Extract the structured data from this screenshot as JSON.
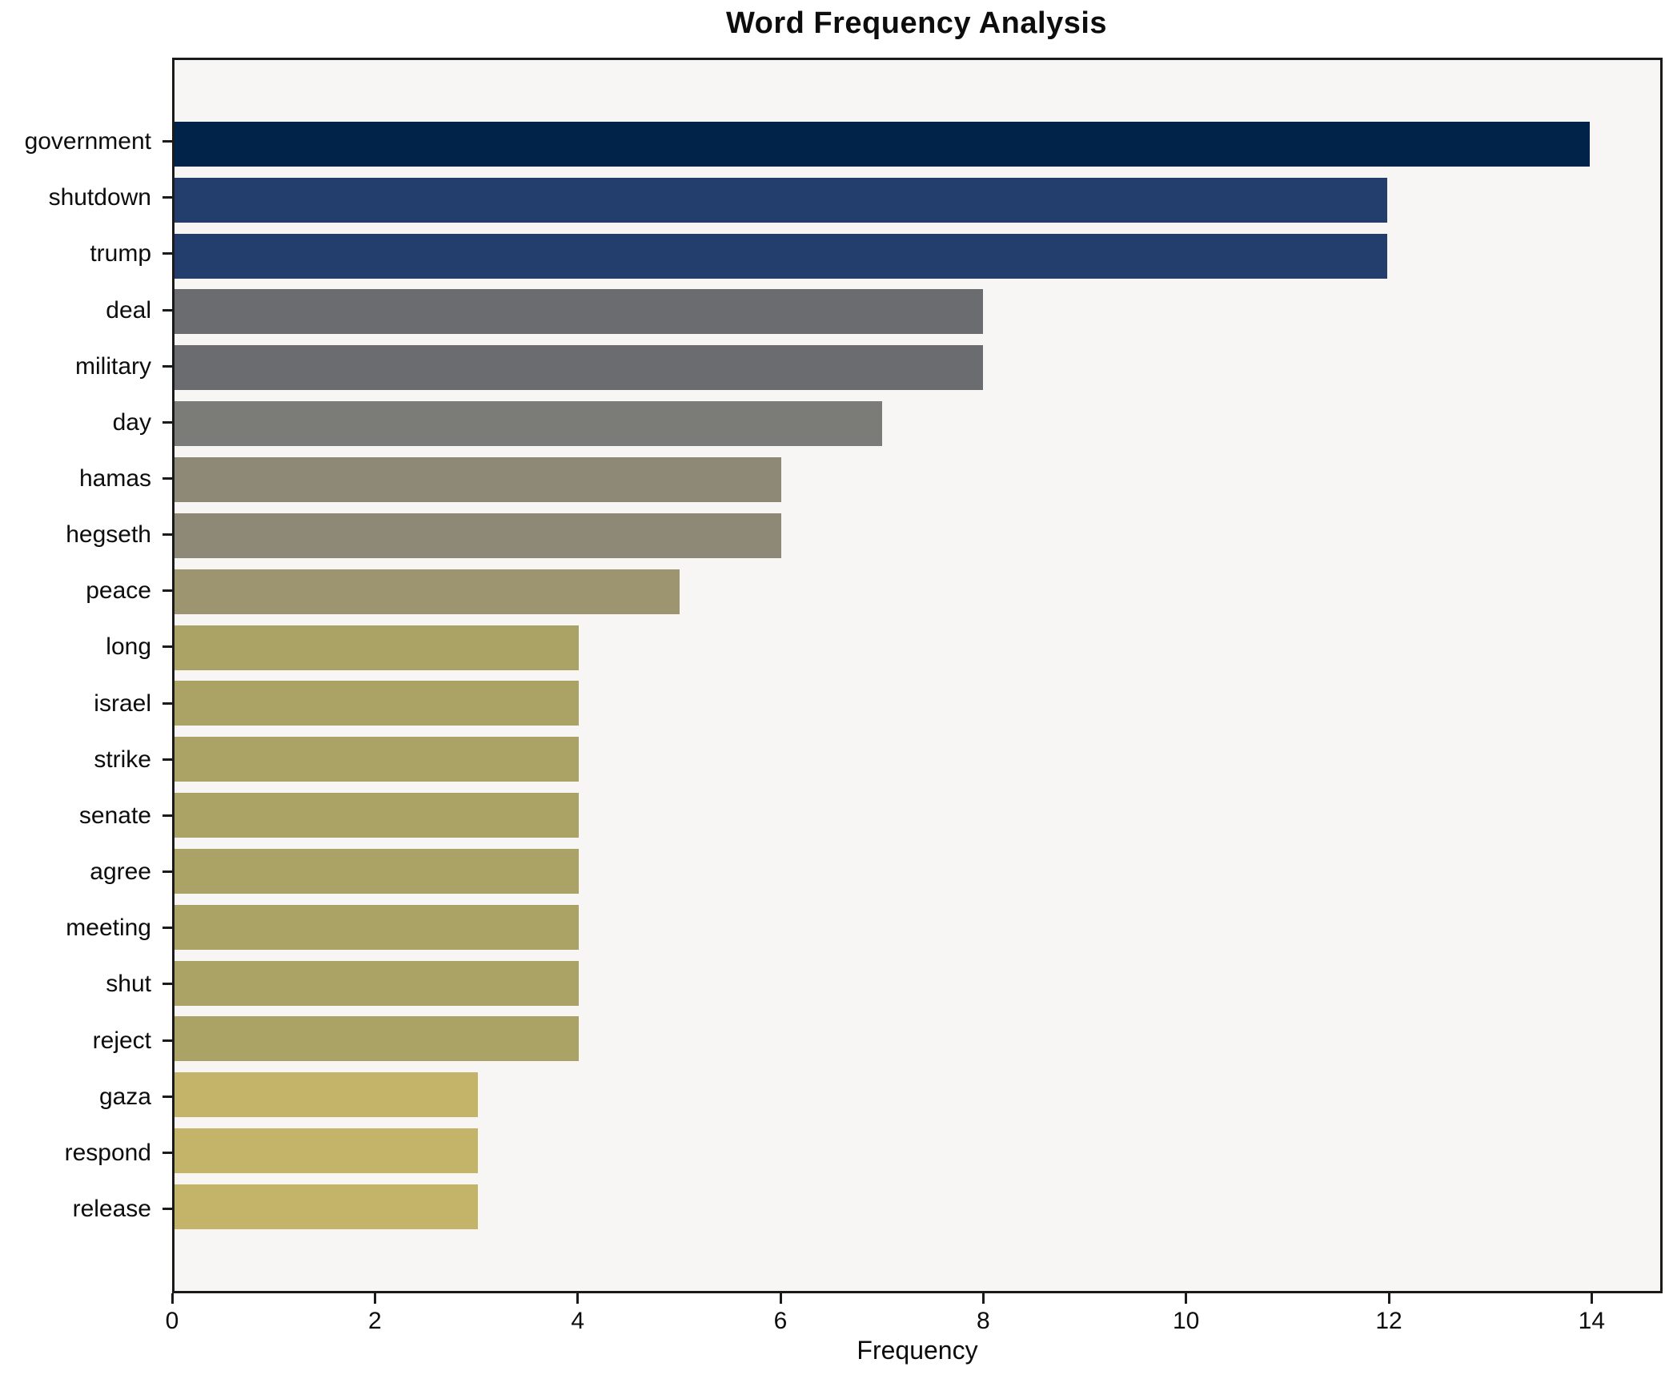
{
  "chart_data": {
    "type": "bar",
    "orientation": "horizontal",
    "title": "Word Frequency Analysis",
    "xlabel": "Frequency",
    "ylabel": "",
    "grid": false,
    "legend": false,
    "xlim": [
      0,
      14.7
    ],
    "x_ticks": [
      0,
      2,
      4,
      6,
      8,
      10,
      12,
      14
    ],
    "categories": [
      "government",
      "shutdown",
      "trump",
      "deal",
      "military",
      "day",
      "hamas",
      "hegseth",
      "peace",
      "long",
      "israel",
      "strike",
      "senate",
      "agree",
      "meeting",
      "shut",
      "reject",
      "gaza",
      "respond",
      "release"
    ],
    "values": [
      14,
      12,
      12,
      8,
      8,
      7,
      6,
      6,
      5,
      4,
      4,
      4,
      4,
      4,
      4,
      4,
      4,
      3,
      3,
      3
    ],
    "bar_colors": [
      "#022349",
      "#233e6d",
      "#233e6d",
      "#6a6c70",
      "#6a6c70",
      "#7b7b78",
      "#8e8977",
      "#8e8977",
      "#9d9570",
      "#aba266",
      "#aba266",
      "#aba266",
      "#aba266",
      "#aba266",
      "#aba266",
      "#aba266",
      "#aba266",
      "#c4b46a",
      "#c4b46a",
      "#c4b46a"
    ],
    "colors": {
      "plot_background": "#f7f6f4",
      "figure_background": "#ffffff",
      "spine": "#1a1a1a",
      "text": "#0d0d0d"
    }
  }
}
